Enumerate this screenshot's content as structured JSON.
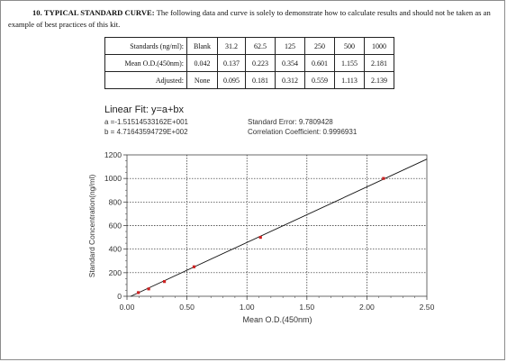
{
  "heading": {
    "number": "10.",
    "title": "TYPICAL STANDARD CURVE:",
    "text": "The following data and curve is solely to demonstrate how to calculate results and should not be taken as an example of best practices of this kit."
  },
  "table": {
    "rows": [
      {
        "label": "Standards (ng/ml):",
        "cells": [
          "Blank",
          "31.2",
          "62.5",
          "125",
          "250",
          "500",
          "1000"
        ]
      },
      {
        "label": "Mean O.D.(450nm):",
        "cells": [
          "0.042",
          "0.137",
          "0.223",
          "0.354",
          "0.601",
          "1.155",
          "2.181"
        ]
      },
      {
        "label": "Adjusted:",
        "cells": [
          "None",
          "0.095",
          "0.181",
          "0.312",
          "0.559",
          "1.113",
          "2.139"
        ]
      }
    ]
  },
  "fit": {
    "title": "Linear Fit: y=a+bx",
    "a": "a =-1.51514533162E+001",
    "b": "b = 4.71643594729E+002",
    "standard_error": "Standard Error: 9.7809428",
    "correlation": "Correlation Coefficient: 0.9996931"
  },
  "chart_data": {
    "type": "scatter",
    "xlabel": "Mean O.D.(450nm)",
    "ylabel": "Standard Concentration(ng/ml)",
    "xlim": [
      0,
      2.5
    ],
    "ylim": [
      0,
      1200
    ],
    "x_ticks": [
      "0.00",
      "0.50",
      "1.00",
      "1.50",
      "2.00",
      "2.50"
    ],
    "y_ticks": [
      "0",
      "200",
      "400",
      "600",
      "800",
      "1000",
      "1200"
    ],
    "grid": true,
    "points": [
      {
        "x": 0.095,
        "y": 31.2
      },
      {
        "x": 0.181,
        "y": 62.5
      },
      {
        "x": 0.312,
        "y": 125
      },
      {
        "x": 0.559,
        "y": 250
      },
      {
        "x": 1.113,
        "y": 500
      },
      {
        "x": 2.139,
        "y": 1000
      }
    ],
    "fit_line": {
      "intercept": -15.1514533162,
      "slope": 471.643594729
    },
    "colors": {
      "points": "#cc2222",
      "line": "#111111",
      "grid": "#222222"
    }
  }
}
